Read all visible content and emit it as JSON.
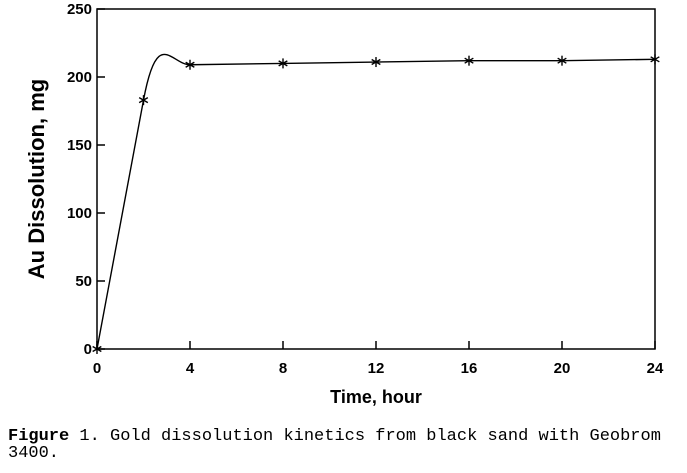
{
  "chart_data": {
    "type": "line",
    "xlabel": "Time, hour",
    "ylabel": "Au Dissolution, mg",
    "xlim": [
      0,
      24
    ],
    "ylim": [
      0,
      250
    ],
    "x_ticks": [
      "0",
      "4",
      "8",
      "12",
      "16",
      "20",
      "24"
    ],
    "y_ticks": [
      "0",
      "50",
      "100",
      "150",
      "200",
      "250"
    ],
    "grid": false,
    "marker": "asterisk",
    "series": [
      {
        "x": [
          0,
          2,
          4,
          8,
          12,
          16,
          20,
          24
        ],
        "y": [
          0,
          183,
          209,
          210,
          211,
          212,
          212,
          213
        ]
      }
    ]
  },
  "caption": {
    "lead": "Figure",
    "text": " 1. Gold dissolution kinetics from black sand with Geobrom 3400."
  }
}
